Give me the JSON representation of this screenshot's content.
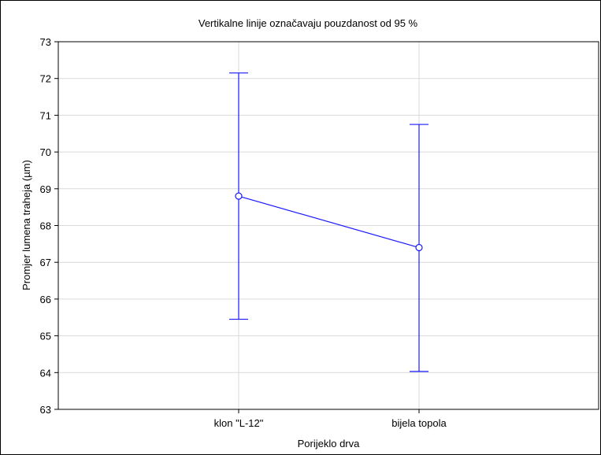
{
  "chart_data": {
    "type": "line",
    "title": "Vertikalne linije označavaju pouzdanost od 95 %",
    "xlabel": "Porijeklo drva",
    "ylabel": "Promjer lumena traheja (µm)",
    "categories": [
      "klon \"L-12\"",
      "bijela topola"
    ],
    "ylim": [
      63,
      73
    ],
    "yticks": [
      63,
      64,
      65,
      66,
      67,
      68,
      69,
      70,
      71,
      72,
      73
    ],
    "grid": true,
    "series": [
      {
        "values": [
          68.8,
          67.4
        ],
        "ci_lower": [
          65.45,
          64.03
        ],
        "ci_upper": [
          72.15,
          70.75
        ]
      }
    ],
    "colors": {
      "series": "#1a1aff",
      "grid": "#d9d9d9",
      "axis": "#000000"
    }
  }
}
